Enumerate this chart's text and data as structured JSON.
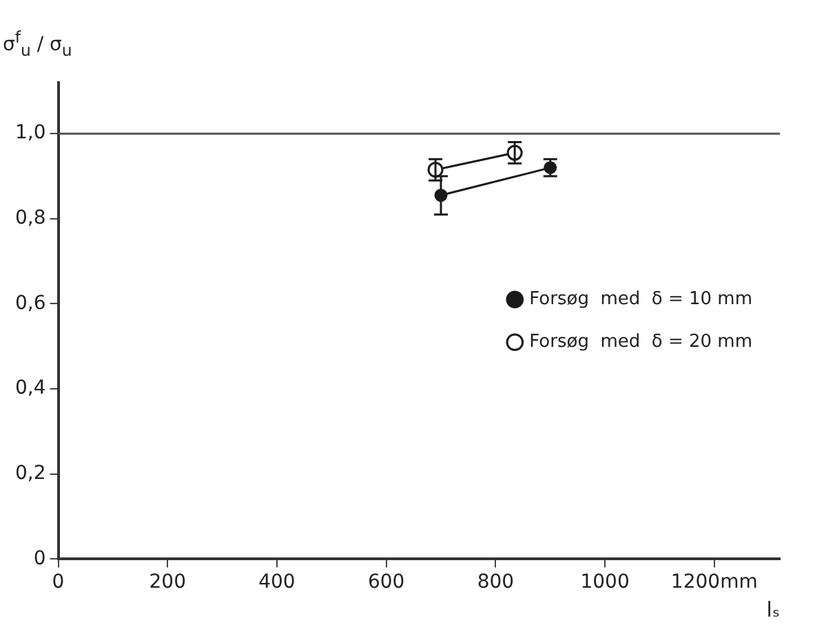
{
  "chart_data": {
    "type": "line",
    "xlabel": "lₛ",
    "ylabel": "σ$^{f}$$_{u}$ / σ$_{u}$",
    "xlim": [
      0,
      1320
    ],
    "ylim": [
      0,
      1.12
    ],
    "xticks": [
      0,
      200,
      400,
      600,
      800,
      1000,
      {
        "value": 1200,
        "label": "1200mm"
      }
    ],
    "yticks": [
      0,
      {
        "value": 0.2,
        "label": "0,2"
      },
      {
        "value": 0.4,
        "label": "0,4"
      },
      {
        "value": 0.6,
        "label": "0,6"
      },
      {
        "value": 0.8,
        "label": "0,8"
      },
      {
        "value": 1.0,
        "label": "1,0"
      }
    ],
    "grid": false,
    "legend": "right",
    "line_style": "solid",
    "ref_lines": [
      {
        "axis": "y",
        "value": 1.0
      }
    ],
    "series": [
      {
        "name": "Forsøg  med  δ = 10 mm",
        "color": "#1a1a1a",
        "marker": "circle",
        "x": [
          700,
          900
        ],
        "values": [
          0.855,
          0.92
        ],
        "errors": [
          [
            0.81,
            0.9
          ],
          [
            0.9,
            0.94
          ]
        ]
      },
      {
        "name": "Forsøg  med  δ = 20 mm",
        "color": "#1a1a1a",
        "marker": "circle",
        "x": [
          690,
          835
        ],
        "values": [
          0.915,
          0.955
        ],
        "errors": [
          [
            0.89,
            0.94
          ],
          [
            0.93,
            0.98
          ]
        ]
      }
    ]
  }
}
